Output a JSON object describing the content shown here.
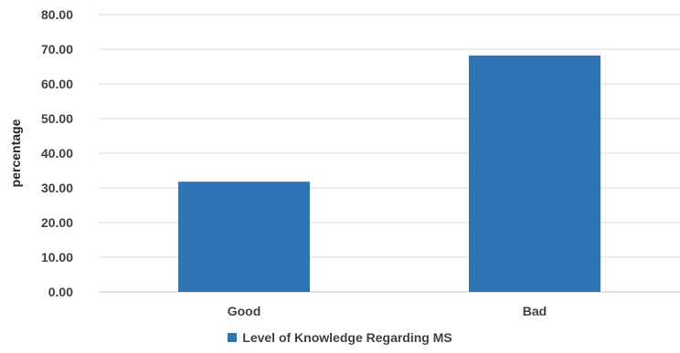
{
  "chart_data": {
    "type": "bar",
    "title": "",
    "xlabel": "",
    "ylabel": "percentage",
    "categories": [
      "Good",
      "Bad"
    ],
    "series": [
      {
        "name": "Level of Knowledge Regarding MS",
        "values": [
          31.8,
          68.2
        ]
      }
    ],
    "ylim": [
      0,
      80
    ],
    "yticks": [
      "0.00",
      "10.00",
      "20.00",
      "30.00",
      "40.00",
      "50.00",
      "60.00",
      "70.00",
      "80.00"
    ],
    "grid": "horizontal",
    "legend_position": "bottom",
    "colors": {
      "bar": "#2e75b6",
      "grid": "#d9d9d9",
      "axis": "#bfbfbf"
    }
  }
}
